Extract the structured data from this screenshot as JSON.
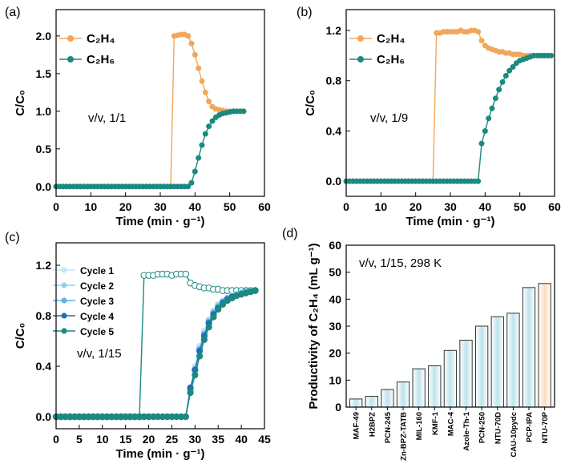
{
  "chart_data": [
    {
      "panel": "(a)",
      "type": "line",
      "xlabel": "Time (min · g⁻¹)",
      "ylabel": "C/C₀",
      "xlim": [
        0,
        60
      ],
      "ylim": [
        -0.13,
        2.35
      ],
      "xticks": [
        0,
        10,
        20,
        30,
        40,
        50,
        60
      ],
      "yticks": [
        "0.0",
        "0.5",
        "1.0",
        "1.5",
        "2.0"
      ],
      "annotation": "v/v, 1/1",
      "series": [
        {
          "name": "C₂H₄",
          "color": "#f2a65a",
          "marker": "filled",
          "x": [
            0,
            1,
            2,
            3,
            4,
            5,
            6,
            7,
            8,
            9,
            10,
            11,
            12,
            13,
            14,
            15,
            16,
            17,
            18,
            19,
            20,
            21,
            22,
            23,
            24,
            25,
            26,
            27,
            28,
            29,
            30,
            31,
            32,
            33,
            34,
            35,
            36,
            37,
            38,
            39,
            40,
            41,
            42,
            43,
            44,
            45,
            46,
            47,
            48,
            49,
            50,
            51,
            52,
            53,
            54
          ],
          "y": [
            0,
            0,
            0,
            0,
            0,
            0,
            0,
            0,
            0,
            0,
            0,
            0,
            0,
            0,
            0,
            0,
            0,
            0,
            0,
            0,
            0,
            0,
            0,
            0,
            0,
            0,
            0,
            0,
            0,
            0,
            0,
            0,
            0,
            0,
            2.0,
            2.01,
            2.02,
            2.02,
            2.0,
            1.9,
            1.75,
            1.57,
            1.4,
            1.25,
            1.13,
            1.06,
            1.03,
            1.02,
            1.01,
            1.0,
            1.0,
            1.0,
            1.0,
            1.0,
            1.0
          ]
        },
        {
          "name": "C₂H₆",
          "color": "#1a8a80",
          "marker": "filled",
          "x": [
            0,
            1,
            2,
            3,
            4,
            5,
            6,
            7,
            8,
            9,
            10,
            11,
            12,
            13,
            14,
            15,
            16,
            17,
            18,
            19,
            20,
            21,
            22,
            23,
            24,
            25,
            26,
            27,
            28,
            29,
            30,
            31,
            32,
            33,
            34,
            35,
            36,
            37,
            38,
            39,
            40,
            41,
            42,
            43,
            44,
            45,
            46,
            47,
            48,
            49,
            50,
            51,
            52,
            53,
            54
          ],
          "y": [
            0,
            0,
            0,
            0,
            0,
            0,
            0,
            0,
            0,
            0,
            0,
            0,
            0,
            0,
            0,
            0,
            0,
            0,
            0,
            0,
            0,
            0,
            0,
            0,
            0,
            0,
            0,
            0,
            0,
            0,
            0,
            0,
            0,
            0,
            0,
            0,
            0,
            0,
            0,
            0.05,
            0.2,
            0.38,
            0.55,
            0.7,
            0.8,
            0.87,
            0.92,
            0.95,
            0.97,
            0.98,
            0.99,
            1.0,
            1.0,
            1.0,
            1.0
          ]
        }
      ]
    },
    {
      "panel": "(b)",
      "type": "line",
      "xlabel": "Time (min · g⁻¹)",
      "ylabel": "C/C₀",
      "xlim": [
        0,
        60
      ],
      "ylim": [
        -0.12,
        1.366
      ],
      "xticks": [
        0,
        10,
        20,
        30,
        40,
        50,
        60
      ],
      "yticks": [
        "0.0",
        "0.4",
        "0.8",
        "1.2"
      ],
      "annotation": "v/v, 1/9",
      "series": [
        {
          "name": "C₂H₄",
          "color": "#f2a65a",
          "marker": "filled",
          "x": [
            0,
            1,
            2,
            3,
            4,
            5,
            6,
            7,
            8,
            9,
            10,
            11,
            12,
            13,
            14,
            15,
            16,
            17,
            18,
            19,
            20,
            21,
            22,
            23,
            24,
            25,
            26,
            27,
            28,
            29,
            30,
            31,
            32,
            33,
            34,
            35,
            36,
            37,
            38,
            39,
            40,
            41,
            42,
            43,
            44,
            45,
            46,
            47,
            48,
            49,
            50,
            51,
            52,
            53,
            54,
            55,
            56,
            57,
            58,
            59
          ],
          "y": [
            0,
            0,
            0,
            0,
            0,
            0,
            0,
            0,
            0,
            0,
            0,
            0,
            0,
            0,
            0,
            0,
            0,
            0,
            0,
            0,
            0,
            0,
            0,
            0,
            0,
            0,
            1.18,
            1.18,
            1.19,
            1.19,
            1.19,
            1.19,
            1.19,
            1.2,
            1.19,
            1.19,
            1.2,
            1.2,
            1.19,
            1.12,
            1.08,
            1.06,
            1.05,
            1.04,
            1.03,
            1.03,
            1.02,
            1.02,
            1.01,
            1.01,
            1.01,
            1.0,
            1.0,
            1.0,
            1.0,
            1.0,
            1.0,
            1.0,
            1.0,
            1.0
          ]
        },
        {
          "name": "C₂H₆",
          "color": "#1a8a80",
          "marker": "filled",
          "x": [
            0,
            1,
            2,
            3,
            4,
            5,
            6,
            7,
            8,
            9,
            10,
            11,
            12,
            13,
            14,
            15,
            16,
            17,
            18,
            19,
            20,
            21,
            22,
            23,
            24,
            25,
            26,
            27,
            28,
            29,
            30,
            31,
            32,
            33,
            34,
            35,
            36,
            37,
            38,
            39,
            40,
            41,
            42,
            43,
            44,
            45,
            46,
            47,
            48,
            49,
            50,
            51,
            52,
            53,
            54,
            55,
            56,
            57,
            58,
            59
          ],
          "y": [
            0,
            0,
            0,
            0,
            0,
            0,
            0,
            0,
            0,
            0,
            0,
            0,
            0,
            0,
            0,
            0,
            0,
            0,
            0,
            0,
            0,
            0,
            0,
            0,
            0,
            0,
            0,
            0,
            0,
            0,
            0,
            0,
            0,
            0,
            0,
            0,
            0,
            0,
            0,
            0.3,
            0.4,
            0.5,
            0.58,
            0.66,
            0.73,
            0.79,
            0.84,
            0.88,
            0.91,
            0.94,
            0.96,
            0.97,
            0.98,
            0.99,
            1.0,
            1.0,
            1.0,
            1.0,
            1.0,
            1.0
          ]
        }
      ]
    },
    {
      "panel": "(c)",
      "type": "line",
      "xlabel": "Time (min · g⁻¹)",
      "ylabel": "C/C₀",
      "xlim": [
        0,
        45
      ],
      "ylim": [
        -0.095,
        1.378
      ],
      "xticks": [
        0,
        5,
        10,
        15,
        20,
        25,
        30,
        35,
        40,
        45
      ],
      "yticks": [
        "0.0",
        "0.4",
        "0.8",
        "1.2"
      ],
      "annotation": "v/v, 1/15",
      "c2h4": {
        "color": "#1a8a80",
        "marker": "open",
        "x": [
          0,
          1,
          2,
          3,
          4,
          5,
          6,
          7,
          8,
          9,
          10,
          11,
          12,
          13,
          14,
          15,
          16,
          17,
          18,
          19,
          20,
          21,
          22,
          23,
          24,
          25,
          26,
          27,
          28,
          29,
          30,
          31,
          32,
          33,
          34,
          35,
          36,
          37,
          38,
          39,
          40,
          41,
          42,
          43
        ],
        "y": [
          0,
          0,
          0,
          0,
          0,
          0,
          0,
          0,
          0,
          0,
          0,
          0,
          0,
          0,
          0,
          0,
          0,
          0,
          0,
          1.12,
          1.12,
          1.12,
          1.13,
          1.13,
          1.13,
          1.12,
          1.13,
          1.13,
          1.13,
          1.06,
          1.04,
          1.03,
          1.02,
          1.02,
          1.01,
          1.01,
          1.0,
          1.0,
          1.0,
          1.0,
          1.0,
          1.0,
          1.0,
          1.0
        ]
      },
      "series": [
        {
          "name": "Cycle 1",
          "color": "#c5e6f7",
          "x": [
            29,
            30,
            31,
            32,
            33,
            34,
            35,
            36,
            37,
            38,
            39,
            40,
            41,
            42,
            43
          ],
          "y": [
            0.22,
            0.4,
            0.56,
            0.68,
            0.77,
            0.84,
            0.89,
            0.92,
            0.94,
            0.96,
            0.97,
            0.98,
            0.99,
            0.99,
            1.0
          ]
        },
        {
          "name": "Cycle 2",
          "color": "#8fd0f0",
          "x": [
            29,
            30,
            31,
            32,
            33,
            34,
            35,
            36,
            37,
            38,
            39,
            40,
            41,
            42,
            43
          ],
          "y": [
            0.21,
            0.38,
            0.54,
            0.66,
            0.76,
            0.83,
            0.88,
            0.91,
            0.94,
            0.95,
            0.97,
            0.98,
            0.99,
            0.99,
            1.0
          ]
        },
        {
          "name": "Cycle 3",
          "color": "#5ab4e8",
          "x": [
            29,
            30,
            31,
            32,
            33,
            34,
            35,
            36,
            37,
            38,
            39,
            40,
            41,
            42,
            43
          ],
          "y": [
            0.21,
            0.37,
            0.53,
            0.65,
            0.75,
            0.82,
            0.87,
            0.91,
            0.93,
            0.95,
            0.96,
            0.98,
            0.99,
            0.99,
            1.0
          ]
        },
        {
          "name": "Cycle 4",
          "color": "#1f6fb0",
          "x": [
            29,
            30,
            31,
            32,
            33,
            34,
            35,
            36,
            37,
            38,
            39,
            40,
            41,
            42,
            43
          ],
          "y": [
            0.23,
            0.37,
            0.52,
            0.64,
            0.74,
            0.81,
            0.86,
            0.9,
            0.93,
            0.95,
            0.96,
            0.97,
            0.98,
            0.99,
            1.0
          ]
        },
        {
          "name": "Cycle 5",
          "color": "#1a8a80",
          "x": [
            29,
            30,
            31,
            32,
            33,
            34,
            35,
            36,
            37,
            38,
            39,
            40,
            41,
            42,
            43
          ],
          "y": [
            0.19,
            0.33,
            0.48,
            0.61,
            0.71,
            0.79,
            0.85,
            0.89,
            0.92,
            0.94,
            0.96,
            0.97,
            0.98,
            0.99,
            1.0
          ]
        }
      ]
    },
    {
      "panel": "(d)",
      "type": "bar",
      "ylabel": "Productivity of C₂H₄ (mL g⁻¹)",
      "ylim": [
        0,
        60
      ],
      "yticks": [
        0,
        10,
        20,
        30,
        40,
        50,
        60
      ],
      "annotation": "v/v, 1/15, 298 K",
      "categories": [
        "MAF-49",
        "H2BPZ",
        "PCN-245",
        "Zn-BPZ-TATB",
        "MIL-160",
        "KMF-1",
        "MAC-4",
        "Azole-Th-1",
        "PCN-250",
        "NTU-70D",
        "CAU-10pydc",
        "PCP-IPA",
        "NTU-70P"
      ],
      "values": [
        3.0,
        4.0,
        6.5,
        9.3,
        14.2,
        15.3,
        21.0,
        24.8,
        30.0,
        33.5,
        34.8,
        44.3,
        45.8
      ],
      "bar_color": "#bfe3ec",
      "highlight_color": "#fbdcc0",
      "highlight": "NTU-70P"
    }
  ]
}
